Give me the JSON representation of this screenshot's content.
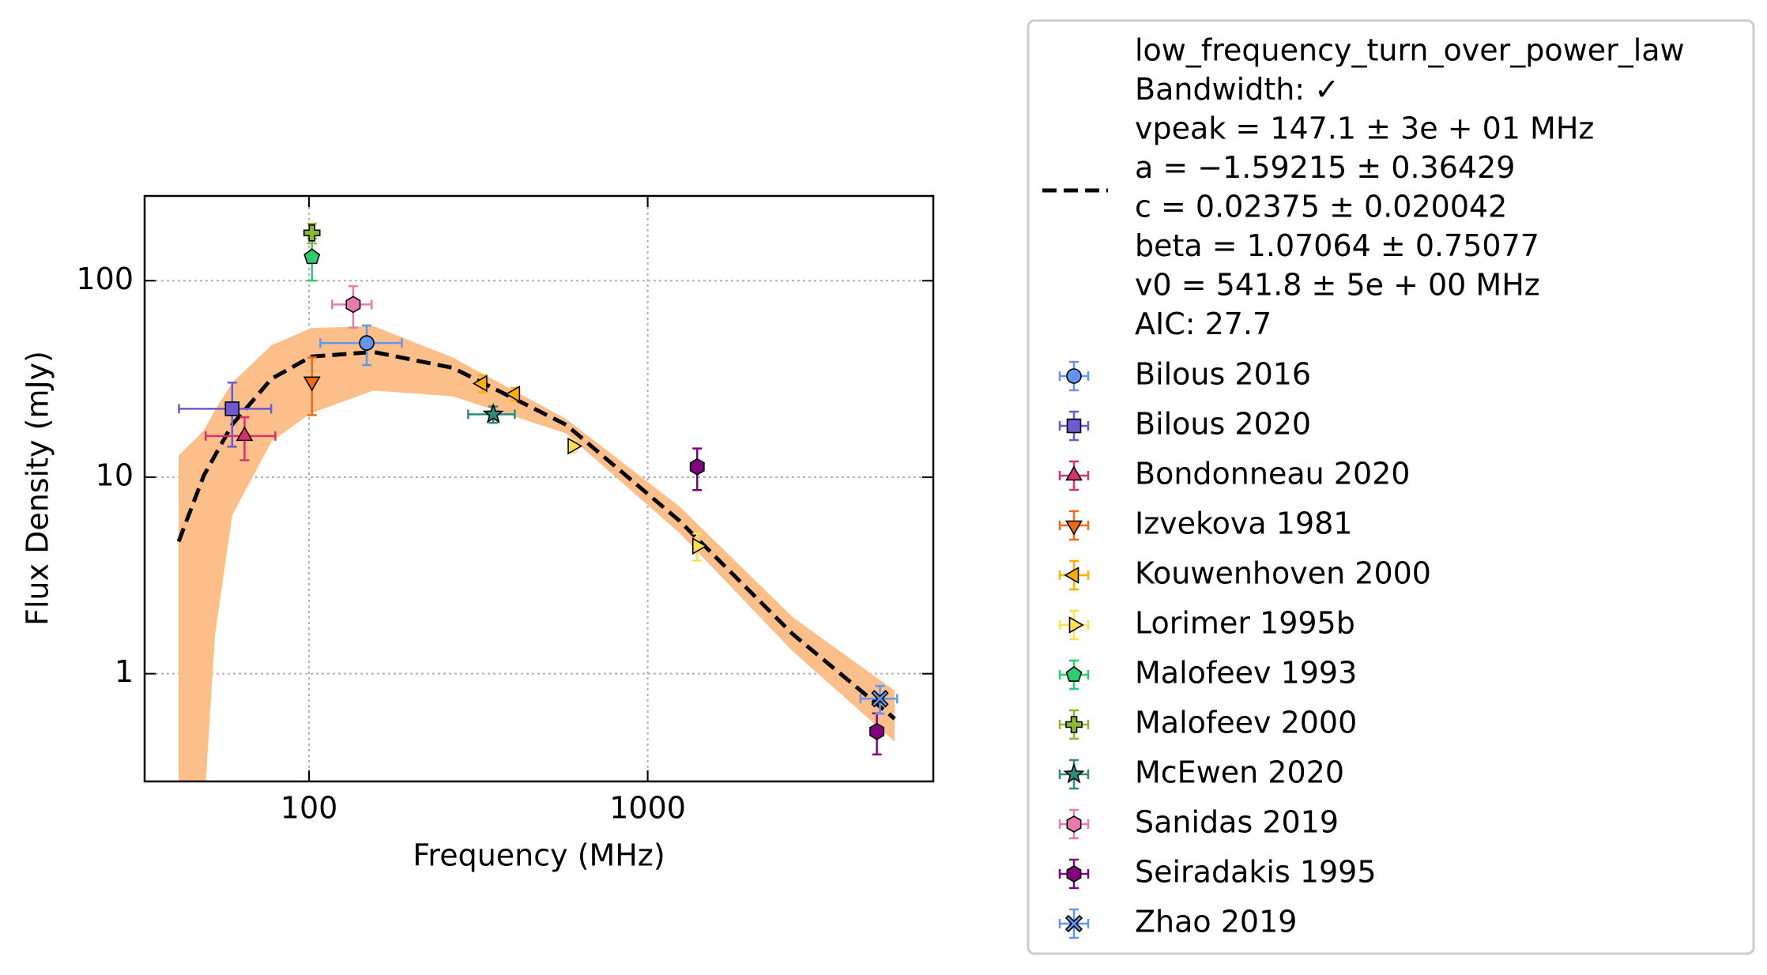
{
  "chart_data": {
    "type": "scatter",
    "x_label": "Frequency (MHz)",
    "y_label": "Flux Density (mJy)",
    "x_log": true,
    "y_log": true,
    "grid": true,
    "legend": "outside right",
    "xlim": [
      32.7,
      6970
    ],
    "ylim": [
      0.283,
      270
    ],
    "xticks": [
      100,
      1000
    ],
    "yticks": [
      1,
      10,
      100
    ],
    "band": {
      "color": "#fdbf8a",
      "x": [
        41.2,
        48.9,
        52.8,
        59.3,
        77.5,
        101.5,
        155,
        266,
        574,
        1241,
        2680,
        5360
      ],
      "upper": [
        12.9,
        17.3,
        22,
        30.3,
        47,
        57.4,
        58.8,
        40.6,
        19.8,
        7.1,
        1.94,
        0.82
      ],
      "lower": [
        0.2,
        0.2,
        1.59,
        6.4,
        15.2,
        21.2,
        27.6,
        25.8,
        16.7,
        5.2,
        1.3,
        0.45
      ]
    },
    "fit": {
      "color": "#000000",
      "label_lines": [
        "low_frequency_turn_over_power_law",
        "Bandwidth: ✓",
        "vpeak = 147.1 ± 3e + 01 MHz",
        "a = −1.59215 ± 0.36429",
        "c = 0.02375 ± 0.020042",
        "beta = 1.07064 ± 0.75077",
        "v0 = 541.8 ± 5e + 00 MHz",
        "AIC: 27.7"
      ],
      "x": [
        41.2,
        48.9,
        59.3,
        77.5,
        101.5,
        155,
        266,
        574,
        1241,
        2680,
        5360
      ],
      "values": [
        4.7,
        10.2,
        18.5,
        31.7,
        41.1,
        43.4,
        36,
        18.5,
        6.0,
        1.59,
        0.59
      ]
    },
    "series": [
      {
        "name": "Bilous 2016",
        "color": "#6495ed",
        "marker": "circle",
        "x": [
          148
        ],
        "values": [
          48.2
        ],
        "xerr": [
          40
        ],
        "yerr": [
          11
        ]
      },
      {
        "name": "Bilous 2020",
        "color": "#6a5acd",
        "marker": "square",
        "x": [
          59.3
        ],
        "values": [
          22.3
        ],
        "xerr": [
          18
        ],
        "yerr": [
          8
        ]
      },
      {
        "name": "Bondonneau 2020",
        "color": "#d6336c",
        "marker": "triangle-up",
        "x": [
          64.5
        ],
        "values": [
          16.2
        ],
        "xerr": [
          15
        ],
        "yerr": [
          4
        ]
      },
      {
        "name": "Izvekova 1981",
        "color": "#f26b0f",
        "marker": "triangle-down",
        "x": [
          102
        ],
        "values": [
          30.7
        ],
        "xerr": [
          null
        ],
        "yerr": [
          10
        ]
      },
      {
        "name": "Kouwenhoven 2000",
        "color": "#ffb000",
        "marker": "triangle-left",
        "x": [
          325,
          406
        ],
        "values": [
          30,
          26.5
        ],
        "xerr": [
          null,
          null
        ],
        "yerr": [
          3,
          2
        ]
      },
      {
        "name": "Lorimer 1995b",
        "color": "#ffe14d",
        "marker": "triangle-right",
        "x": [
          600,
          1400
        ],
        "values": [
          14.4,
          4.46
        ],
        "xerr": [
          null,
          null
        ],
        "yerr": [
          1,
          0.7
        ]
      },
      {
        "name": "Malofeev 1993",
        "color": "#2ecc71",
        "marker": "pentagon",
        "x": [
          102
        ],
        "values": [
          132
        ],
        "xerr": [
          null
        ],
        "yerr": [
          32
        ]
      },
      {
        "name": "Malofeev 2000",
        "color": "#8db832",
        "marker": "plus",
        "x": [
          102
        ],
        "values": [
          175
        ],
        "xerr": [
          null
        ],
        "yerr": [
          20
        ]
      },
      {
        "name": "McEwen 2020",
        "color": "#2e8b7a",
        "marker": "star",
        "x": [
          350
        ],
        "values": [
          20.9
        ],
        "xerr": [
          55
        ],
        "yerr": [
          2
        ]
      },
      {
        "name": "Sanidas 2019",
        "color": "#e87ab0",
        "marker": "hexagon",
        "x": [
          135
        ],
        "values": [
          75.7
        ],
        "xerr": [
          18
        ],
        "yerr": [
          18
        ]
      },
      {
        "name": "Seiradakis 1995",
        "color": "#800080",
        "marker": "hexagon",
        "x": [
          1400,
          4750
        ],
        "values": [
          11.3,
          0.508
        ],
        "xerr": [
          null,
          null
        ],
        "yerr": [
          2.7,
          0.12
        ]
      },
      {
        "name": "Zhao 2019",
        "color": "#6495ed",
        "marker": "x",
        "x": [
          4850
        ],
        "values": [
          0.746
        ],
        "xerr": [
          600
        ],
        "yerr": [
          0.12
        ]
      }
    ]
  }
}
